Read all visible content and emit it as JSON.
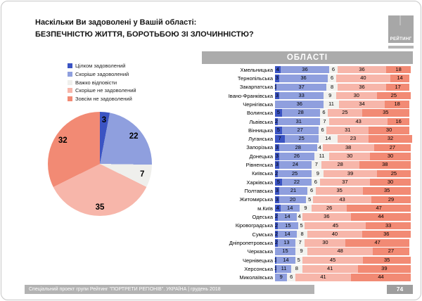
{
  "title": {
    "line1": "Наскільки Ви задоволені у Вашій області:",
    "line2": "БЕЗПЕЧНІСТЮ ЖИТТЯ, БОРОТЬБОЮ ЗІ ЗЛОЧИННІСТЮ?"
  },
  "logo_label": "РЕЙТИНГ",
  "footer": {
    "text": "Спеціальний проект групи Рейтинг \"ПОРТРЕТИ РЕГІОНІВ\". УКРАЇНА | грудень 2018",
    "page_number": "74"
  },
  "chart_data": [
    {
      "type": "pie",
      "legend_position": "top-left",
      "labels": [
        "Цілком задоволений",
        "Скоріше задоволений",
        "Важко відповісти",
        "Скоріше не задоволений",
        "Зовсім не задоволений"
      ],
      "values": [
        3,
        22,
        7,
        35,
        32
      ],
      "colors": [
        "#3b54c3",
        "#8f9fde",
        "#efefec",
        "#f7b6aa",
        "#f28a74"
      ],
      "unit": "%"
    },
    {
      "type": "bar",
      "subtype": "stacked-horizontal",
      "header": "ОБЛАСТІ",
      "series_labels": [
        "Цілком задоволений",
        "Скоріше задоволений",
        "Важко відповісти",
        "Скоріше не задоволений",
        "Зовсім не задоволений"
      ],
      "colors": [
        "#3b54c3",
        "#8f9fde",
        "#f2f2ee",
        "#f7b6aa",
        "#f28a74"
      ],
      "xlim": [
        0,
        100
      ],
      "unit": "%",
      "categories": [
        "Хмельницька",
        "Тернопільська",
        "Закарпатська",
        "Івано-Франківська",
        "Чернігівська",
        "Волинська",
        "Львівська",
        "Вінницька",
        "Луганська",
        "Запорізька",
        "Донецька",
        "Рівненська",
        "Київська",
        "Харківська",
        "Полтавська",
        "Житомирська",
        "м.Київ",
        "Одеська",
        "Кіровоградська",
        "Сумська",
        "Дніпропетровська",
        "Черкаська",
        "Чернівецька",
        "Херсонська",
        "Миколаївська"
      ],
      "rows": [
        [
          4,
          36,
          6,
          36,
          18
        ],
        [
          3,
          36,
          6,
          40,
          14
        ],
        [
          1,
          37,
          8,
          36,
          17
        ],
        [
          3,
          33,
          9,
          30,
          25
        ],
        [
          0,
          36,
          11,
          34,
          18
        ],
        [
          5,
          28,
          6,
          25,
          35
        ],
        [
          2,
          31,
          7,
          43,
          16
        ],
        [
          5,
          27,
          6,
          31,
          30
        ],
        [
          7,
          25,
          14,
          23,
          32
        ],
        [
          3,
          28,
          4,
          38,
          27
        ],
        [
          3,
          26,
          11,
          30,
          30
        ],
        [
          3,
          24,
          7,
          28,
          38
        ],
        [
          2,
          25,
          9,
          39,
          25
        ],
        [
          5,
          22,
          6,
          37,
          30
        ],
        [
          3,
          21,
          6,
          35,
          35
        ],
        [
          3,
          20,
          5,
          43,
          29
        ],
        [
          4,
          14,
          9,
          26,
          47
        ],
        [
          2,
          14,
          4,
          36,
          44
        ],
        [
          2,
          15,
          5,
          45,
          33
        ],
        [
          2,
          14,
          8,
          40,
          36
        ],
        [
          2,
          13,
          7,
          30,
          47
        ],
        [
          0,
          15,
          9,
          48,
          27
        ],
        [
          1,
          14,
          5,
          45,
          35
        ],
        [
          1,
          11,
          8,
          41,
          39
        ],
        [
          0,
          9,
          6,
          41,
          44
        ]
      ]
    }
  ]
}
